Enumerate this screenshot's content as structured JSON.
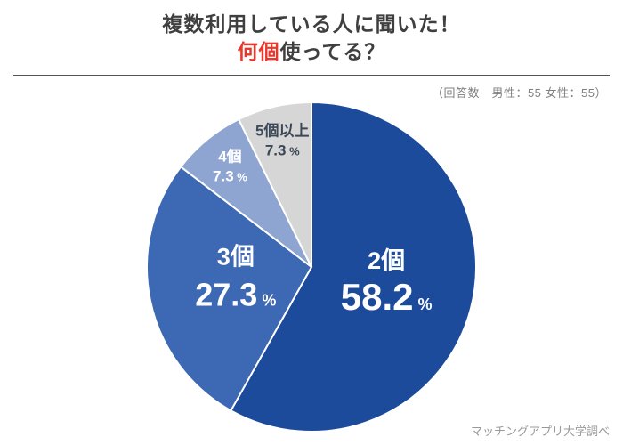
{
  "title": {
    "line1": "複数利用している人に聞いた！",
    "line2_red": "何個",
    "line2_rest": "使ってる？"
  },
  "respondents_note": "（回答数　男性：55 女性：55）",
  "source": "マッチングアプリ大学調べ",
  "chart_data": {
    "type": "pie",
    "title": "複数利用している人に聞いた！何個使ってる？",
    "categories": [
      "2個",
      "3個",
      "4個",
      "5個以上"
    ],
    "values": [
      58.2,
      27.3,
      7.3,
      7.3
    ],
    "unit": "%",
    "colors": [
      "#1c4b9c",
      "#3d68b3",
      "#8da5d0",
      "#d6d6d6"
    ],
    "label_colors": [
      "#ffffff",
      "#ffffff",
      "#ffffff",
      "#3c4858"
    ],
    "start_angle_deg": 0,
    "direction": "clockwise",
    "legend": "none",
    "labels_inside": true
  }
}
